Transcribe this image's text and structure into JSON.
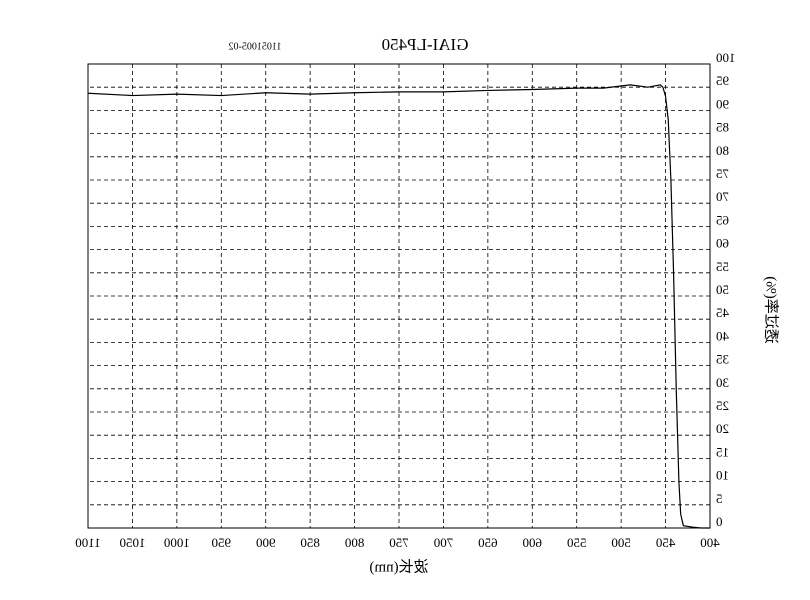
{
  "chart_data": {
    "type": "line",
    "title": "GIAI-LP450",
    "subtitle": "11051005-02",
    "x_label": "波长(nm)",
    "y_label": "透过率(%)",
    "mirrored": true,
    "grid": true,
    "xlim": [
      400,
      1100
    ],
    "ylim": [
      0,
      100
    ],
    "xticks": [
      400,
      450,
      500,
      550,
      600,
      650,
      700,
      750,
      800,
      850,
      900,
      950,
      1000,
      1050,
      1100
    ],
    "yticks": [
      0,
      5,
      10,
      15,
      20,
      25,
      30,
      35,
      40,
      45,
      50,
      55,
      60,
      65,
      70,
      75,
      80,
      85,
      90,
      95,
      100
    ],
    "series": [
      {
        "color": "#000000",
        "x": [
          400,
          410,
          420,
          430,
          433,
          435,
          438,
          441,
          444,
          447,
          450,
          453,
          456,
          470,
          490,
          520,
          550,
          600,
          650,
          700,
          750,
          800,
          850,
          900,
          950,
          1000,
          1050,
          1100
        ],
        "values": [
          0,
          0,
          0.2,
          0.5,
          3,
          10,
          30,
          55,
          75,
          88,
          93,
          95,
          95.5,
          95,
          95.5,
          94.8,
          94.8,
          94.5,
          94.3,
          94,
          94,
          93.8,
          93.5,
          93.8,
          93.2,
          93.5,
          93.2,
          93.7
        ]
      }
    ]
  }
}
